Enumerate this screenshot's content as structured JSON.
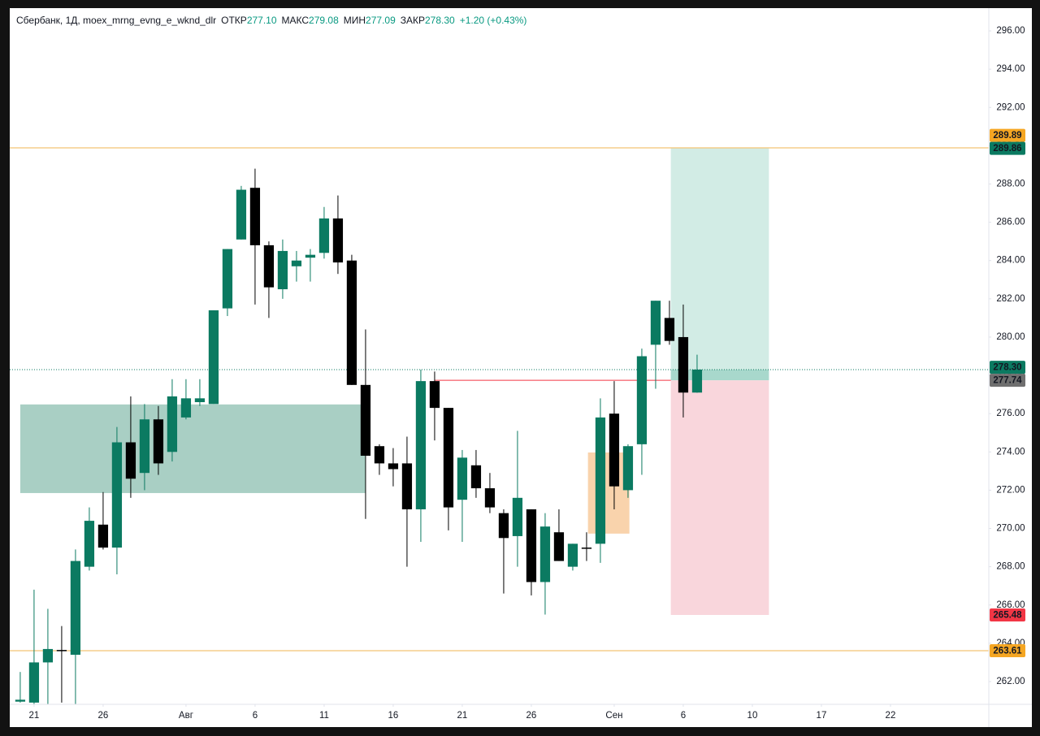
{
  "header": {
    "symbol": "Сбербанк, 1Д, moex_mrng_evng_e_wknd_dlr",
    "fields": [
      {
        "label": "ОТКР",
        "value": "277.10"
      },
      {
        "label": "МАКС",
        "value": "279.08"
      },
      {
        "label": "МИН",
        "value": "277.09"
      },
      {
        "label": "ЗАКР",
        "value": "278.30"
      }
    ],
    "change": "+1.20 (+0.43%)"
  },
  "chart_data": {
    "type": "candlestick",
    "up_color": "#0b7a61",
    "down_color": "#000000",
    "grid": false,
    "x": [
      0,
      1,
      2,
      3,
      4,
      5,
      6,
      7,
      8,
      9,
      10,
      11,
      12,
      13,
      14,
      15,
      16,
      17,
      18,
      19,
      20,
      21,
      22,
      23,
      24,
      25,
      26,
      27,
      28,
      29,
      30,
      31,
      32,
      33,
      34,
      35,
      36,
      37,
      38,
      39,
      40,
      41,
      42,
      43,
      44,
      45,
      46,
      47,
      48,
      49
    ],
    "open": [
      260.95,
      260.9,
      263.0,
      263.65,
      263.4,
      268.0,
      270.2,
      269.0,
      274.5,
      272.9,
      275.7,
      274.0,
      275.8,
      276.6,
      276.5,
      281.5,
      285.1,
      287.8,
      284.8,
      282.5,
      283.7,
      284.15,
      284.4,
      286.2,
      284.0,
      277.5,
      274.3,
      273.4,
      273.4,
      271.0,
      277.7,
      276.3,
      271.5,
      273.3,
      272.1,
      270.8,
      269.6,
      271.0,
      267.2,
      269.8,
      268.0,
      269.0,
      269.2,
      276.0,
      272.0,
      274.4,
      279.6,
      281.0,
      280.0,
      277.1
    ],
    "high": [
      262.5,
      266.8,
      265.8,
      264.9,
      268.9,
      271.1,
      271.9,
      275.3,
      276.9,
      276.5,
      276.4,
      277.8,
      277.8,
      277.8,
      281.4,
      284.6,
      287.9,
      288.8,
      285.0,
      285.1,
      284.5,
      284.6,
      286.8,
      287.4,
      284.3,
      280.4,
      274.4,
      274.2,
      274.8,
      278.3,
      278.2,
      276.3,
      274.1,
      274.1,
      272.9,
      271.0,
      275.1,
      271.0,
      270.8,
      271.0,
      269.2,
      269.8,
      276.8,
      277.7,
      274.4,
      279.4,
      281.9,
      281.9,
      281.7,
      279.08
    ],
    "low": [
      260.9,
      260.8,
      260.8,
      260.9,
      260.8,
      267.8,
      268.9,
      267.6,
      271.6,
      272.0,
      272.8,
      273.5,
      275.7,
      276.4,
      276.5,
      281.1,
      285.1,
      281.7,
      281.0,
      282.0,
      282.9,
      282.9,
      284.1,
      283.3,
      277.5,
      270.5,
      272.8,
      272.2,
      268.0,
      269.3,
      274.6,
      269.9,
      269.3,
      271.6,
      270.8,
      266.6,
      268.0,
      266.5,
      265.5,
      268.3,
      267.8,
      268.3,
      268.2,
      271.0,
      271.6,
      272.8,
      277.3,
      279.6,
      275.8,
      277.09
    ],
    "close": [
      261.05,
      263.0,
      263.7,
      263.6,
      268.3,
      270.4,
      269.0,
      274.5,
      272.6,
      275.7,
      273.4,
      276.9,
      276.8,
      276.8,
      281.4,
      284.6,
      287.7,
      284.8,
      282.6,
      284.5,
      284.0,
      284.3,
      286.2,
      283.9,
      277.5,
      273.8,
      273.4,
      273.1,
      271.0,
      277.7,
      276.3,
      271.1,
      273.7,
      272.1,
      271.1,
      269.5,
      271.6,
      267.2,
      270.1,
      268.3,
      269.2,
      268.95,
      275.8,
      272.2,
      274.3,
      279.0,
      281.9,
      279.8,
      277.1,
      278.3
    ],
    "xlim": [
      -0.76,
      70.12
    ],
    "ylim": [
      260.81,
      297.19
    ],
    "xticks": [
      {
        "value": 1,
        "label": "21"
      },
      {
        "value": 6,
        "label": "26"
      },
      {
        "value": 12,
        "label": "Авг"
      },
      {
        "value": 17,
        "label": "6"
      },
      {
        "value": 22,
        "label": "11"
      },
      {
        "value": 27,
        "label": "16"
      },
      {
        "value": 32,
        "label": "21"
      },
      {
        "value": 37,
        "label": "26"
      },
      {
        "value": 43,
        "label": "Сен"
      },
      {
        "value": 48,
        "label": "6"
      },
      {
        "value": 53,
        "label": "10"
      },
      {
        "value": 58,
        "label": "17"
      },
      {
        "value": 63,
        "label": "22"
      }
    ],
    "yticks": [
      {
        "value": 262,
        "label": "262.00"
      },
      {
        "value": 264,
        "label": "264.00"
      },
      {
        "value": 266,
        "label": "266.00"
      },
      {
        "value": 268,
        "label": "268.00"
      },
      {
        "value": 270,
        "label": "270.00"
      },
      {
        "value": 272,
        "label": "272.00"
      },
      {
        "value": 274,
        "label": "274.00"
      },
      {
        "value": 276,
        "label": "276.00"
      },
      {
        "value": 278,
        "label": "278.00"
      },
      {
        "value": 280,
        "label": "280.00"
      },
      {
        "value": 282,
        "label": "282.00"
      },
      {
        "value": 284,
        "label": "284.00"
      },
      {
        "value": 286,
        "label": "286.00"
      },
      {
        "value": 288,
        "label": "288.00"
      },
      {
        "value": 290,
        "label": "290.00"
      },
      {
        "value": 292,
        "label": "292.00"
      },
      {
        "value": 294,
        "label": "294.00"
      },
      {
        "value": 296,
        "label": "296.00"
      }
    ],
    "zones": [
      {
        "x": [
          0,
          25
        ],
        "y": [
          271.85,
          276.48
        ],
        "color": "#a9cfc4"
      },
      {
        "x": [
          41.1,
          44.1
        ],
        "y": [
          269.73,
          273.97
        ],
        "color": "#f9d3ac"
      },
      {
        "x": [
          47.1,
          54.2
        ],
        "y": [
          277.74,
          289.86
        ],
        "color": "#d2ece5"
      },
      {
        "x": [
          47.1,
          54.2
        ],
        "y": [
          277.74,
          278.3
        ],
        "color": "#a8d8cc"
      },
      {
        "x": [
          47.1,
          54.2
        ],
        "y": [
          265.48,
          277.74
        ],
        "color": "#f9d6dc"
      }
    ],
    "lines": [
      {
        "value": 289.89,
        "color": "#f0b450",
        "style": "solid"
      },
      {
        "value": 263.61,
        "color": "#f0b450",
        "style": "solid"
      },
      {
        "value": 278.3,
        "color": "#0b7a61",
        "style": "dotted"
      },
      {
        "value": 277.74,
        "color": "#f23645",
        "style": "solid",
        "x": [
          30,
          47.1
        ]
      }
    ],
    "price_tags": [
      {
        "value": 289.89,
        "label": "289.89",
        "color": "#f5a623",
        "text_color": "#000000"
      },
      {
        "value": 289.86,
        "label": "289.86",
        "color": "#0b7a61",
        "text_color": "#ffffff"
      },
      {
        "value": 278.3,
        "label": "278.30",
        "color": "#0b7a61",
        "text_color": "#ffffff"
      },
      {
        "value": 277.74,
        "label": "277.74",
        "color": "#6f6f6f",
        "text_color": "#ffffff"
      },
      {
        "value": 265.48,
        "label": "265.48",
        "color": "#f23645",
        "text_color": "#ffffff"
      },
      {
        "value": 263.61,
        "label": "263.61",
        "color": "#f5a623",
        "text_color": "#000000"
      }
    ]
  }
}
